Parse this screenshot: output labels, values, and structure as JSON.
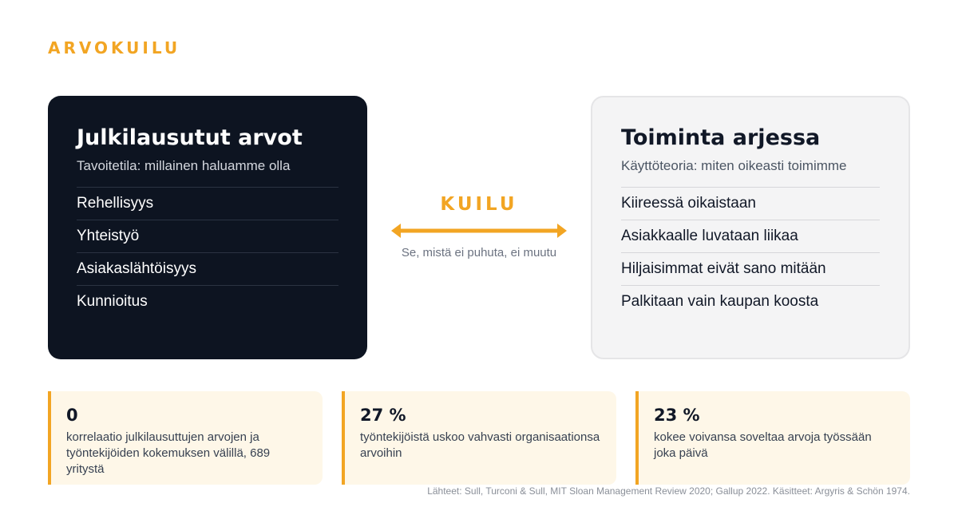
{
  "eyebrow": "ARVOKUILU",
  "left_card": {
    "title": "Julkilausutut arvot",
    "subtitle": "Tavoitetila: millainen haluamme olla",
    "items": [
      "Rehellisyys",
      "Yhteistyö",
      "Asiakaslähtöisyys",
      "Kunnioitus"
    ]
  },
  "right_card": {
    "title": "Toiminta arjessa",
    "subtitle": "Käyttöteoria: miten oikeasti toimimme",
    "items": [
      "Kiireessä oikaistaan",
      "Asiakkaalle luvataan liikaa",
      "Hiljaisimmat eivät sano mitään",
      "Palkitaan vain kaupan koosta"
    ]
  },
  "gap": {
    "label": "KUILU",
    "caption": "Se, mistä ei puhuta, ei muutu"
  },
  "stats": [
    {
      "value": "0",
      "text": "korrelaatio julkilausuttujen arvojen ja työntekijöiden kokemuksen välillä, 689 yritystä"
    },
    {
      "value": "27 %",
      "text": "työntekijöistä uskoo vahvasti organisaationsa arvoihin"
    },
    {
      "value": "23 %",
      "text": "kokee voivansa soveltaa arvoja työssään joka päivä"
    }
  ],
  "sources": "Lähteet: Sull, Turconi & Sull, MIT Sloan Management Review 2020; Gallup 2022. Käsitteet: Argyris & Schön 1974.",
  "colors": {
    "accent": "#f2a523",
    "dark_card": "#0d1421",
    "light_card": "#f4f4f5",
    "stat_background": "#fef7e8"
  },
  "icons": {
    "gap_arrow": "double-headed-arrow"
  }
}
